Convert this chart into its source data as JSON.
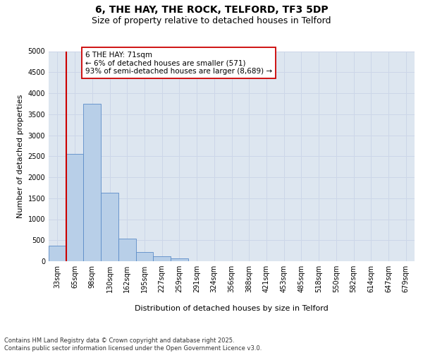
{
  "title_line1": "6, THE HAY, THE ROCK, TELFORD, TF3 5DP",
  "title_line2": "Size of property relative to detached houses in Telford",
  "xlabel": "Distribution of detached houses by size in Telford",
  "ylabel": "Number of detached properties",
  "categories": [
    "33sqm",
    "65sqm",
    "98sqm",
    "130sqm",
    "162sqm",
    "195sqm",
    "227sqm",
    "259sqm",
    "291sqm",
    "324sqm",
    "356sqm",
    "388sqm",
    "421sqm",
    "453sqm",
    "485sqm",
    "518sqm",
    "550sqm",
    "582sqm",
    "614sqm",
    "647sqm",
    "679sqm"
  ],
  "values": [
    370,
    2550,
    3750,
    1625,
    530,
    220,
    115,
    65,
    0,
    0,
    0,
    0,
    0,
    0,
    0,
    0,
    0,
    0,
    0,
    0,
    0
  ],
  "bar_color": "#b8cfe8",
  "bar_edge_color": "#5b8cc8",
  "vline_color": "#cc0000",
  "vline_pos": 1.5,
  "annotation_text": "6 THE HAY: 71sqm\n← 6% of detached houses are smaller (571)\n93% of semi-detached houses are larger (8,689) →",
  "annotation_box_facecolor": "#ffffff",
  "annotation_box_edgecolor": "#cc0000",
  "ylim": [
    0,
    5000
  ],
  "yticks": [
    0,
    500,
    1000,
    1500,
    2000,
    2500,
    3000,
    3500,
    4000,
    4500,
    5000
  ],
  "grid_color": "#ccd6e8",
  "background_color": "#dde6f0",
  "footer": "Contains HM Land Registry data © Crown copyright and database right 2025.\nContains public sector information licensed under the Open Government Licence v3.0.",
  "title_fontsize": 10,
  "subtitle_fontsize": 9,
  "axis_label_fontsize": 8,
  "tick_fontsize": 7,
  "annotation_fontsize": 7.5,
  "footer_fontsize": 6
}
